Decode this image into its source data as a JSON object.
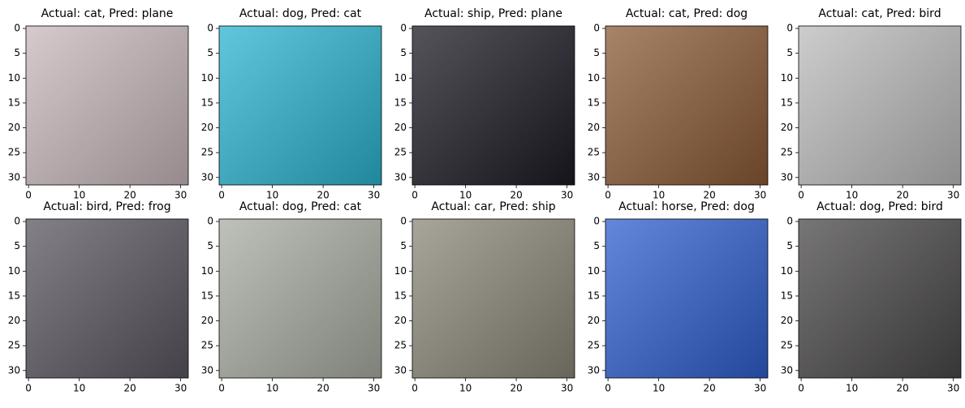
{
  "chart_data": [
    {
      "type": "image",
      "title": "Actual: cat, Pred: plane",
      "title_color": "#ff0000",
      "xlim": [
        -0.5,
        31.5
      ],
      "ylim": [
        31.5,
        -0.5
      ],
      "xticks": [
        0,
        10,
        20,
        30
      ],
      "yticks": [
        0,
        5,
        10,
        15,
        20,
        25,
        30
      ]
    },
    {
      "type": "image",
      "title": "Actual: dog, Pred: cat",
      "title_color": "#ff0000",
      "xlim": [
        -0.5,
        31.5
      ],
      "ylim": [
        31.5,
        -0.5
      ],
      "xticks": [
        0,
        10,
        20,
        30
      ],
      "yticks": [
        0,
        5,
        10,
        15,
        20,
        25,
        30
      ]
    },
    {
      "type": "image",
      "title": "Actual: ship, Pred: plane",
      "title_color": "#ff0000",
      "xlim": [
        -0.5,
        31.5
      ],
      "ylim": [
        31.5,
        -0.5
      ],
      "xticks": [
        0,
        10,
        20,
        30
      ],
      "yticks": [
        0,
        5,
        10,
        15,
        20,
        25,
        30
      ]
    },
    {
      "type": "image",
      "title": "Actual: cat, Pred: dog",
      "title_color": "#ff0000",
      "xlim": [
        -0.5,
        31.5
      ],
      "ylim": [
        31.5,
        -0.5
      ],
      "xticks": [
        0,
        10,
        20,
        30
      ],
      "yticks": [
        0,
        5,
        10,
        15,
        20,
        25,
        30
      ]
    },
    {
      "type": "image",
      "title": "Actual: cat, Pred: bird",
      "title_color": "#ff0000",
      "xlim": [
        -0.5,
        31.5
      ],
      "ylim": [
        31.5,
        -0.5
      ],
      "xticks": [
        0,
        10,
        20,
        30
      ],
      "yticks": [
        0,
        5,
        10,
        15,
        20,
        25,
        30
      ]
    },
    {
      "type": "image",
      "title": "Actual: bird, Pred: frog",
      "title_color": "#ff0000",
      "xlim": [
        -0.5,
        31.5
      ],
      "ylim": [
        31.5,
        -0.5
      ],
      "xticks": [
        0,
        10,
        20,
        30
      ],
      "yticks": [
        0,
        5,
        10,
        15,
        20,
        25,
        30
      ]
    },
    {
      "type": "image",
      "title": "Actual: dog, Pred: cat",
      "title_color": "#ff0000",
      "xlim": [
        -0.5,
        31.5
      ],
      "ylim": [
        31.5,
        -0.5
      ],
      "xticks": [
        0,
        10,
        20,
        30
      ],
      "yticks": [
        0,
        5,
        10,
        15,
        20,
        25,
        30
      ]
    },
    {
      "type": "image",
      "title": "Actual: car, Pred: ship",
      "title_color": "#ff0000",
      "xlim": [
        -0.5,
        31.5
      ],
      "ylim": [
        31.5,
        -0.5
      ],
      "xticks": [
        0,
        10,
        20,
        30
      ],
      "yticks": [
        0,
        5,
        10,
        15,
        20,
        25,
        30
      ]
    },
    {
      "type": "image",
      "title": "Actual: horse, Pred: dog",
      "title_color": "#ff0000",
      "xlim": [
        -0.5,
        31.5
      ],
      "ylim": [
        31.5,
        -0.5
      ],
      "xticks": [
        0,
        10,
        20,
        30
      ],
      "yticks": [
        0,
        5,
        10,
        15,
        20,
        25,
        30
      ]
    },
    {
      "type": "image",
      "title": "Actual: dog, Pred: bird",
      "title_color": "#ff0000",
      "xlim": [
        -0.5,
        31.5
      ],
      "ylim": [
        31.5,
        -0.5
      ],
      "xticks": [
        0,
        10,
        20,
        30
      ],
      "yticks": [
        0,
        5,
        10,
        15,
        20,
        25,
        30
      ]
    }
  ]
}
